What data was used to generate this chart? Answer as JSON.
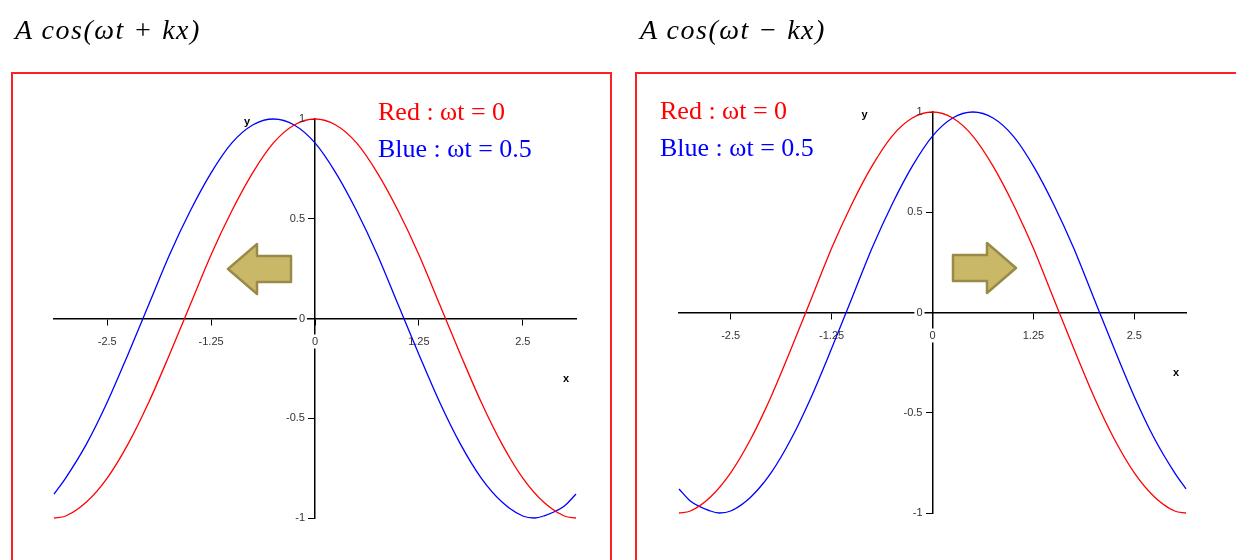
{
  "chart_data": [
    {
      "type": "line",
      "title": "A cos(ωt + kx)",
      "xlabel": "x",
      "ylabel": "y",
      "legend": "top right",
      "x": [
        -3.14,
        -3,
        -2.75,
        -2.5,
        -2.25,
        -2,
        -1.75,
        -1.5,
        -1.25,
        -1,
        -0.75,
        -0.5,
        -0.25,
        0,
        0.25,
        0.5,
        0.75,
        1,
        1.25,
        1.5,
        1.75,
        2,
        2.25,
        2.5,
        2.75,
        3,
        3.14
      ],
      "series": [
        {
          "name": "Red : ωt = 0",
          "color": "#ff0000",
          "values": [
            -1,
            -0.99,
            -0.92,
            -0.8,
            -0.63,
            -0.42,
            -0.18,
            0.07,
            0.32,
            0.54,
            0.73,
            0.88,
            0.97,
            1,
            0.97,
            0.88,
            0.73,
            0.54,
            0.32,
            0.07,
            -0.18,
            -0.42,
            -0.63,
            -0.8,
            -0.92,
            -0.99,
            -1
          ]
        },
        {
          "name": "Blue : ωt = 0.5",
          "color": "#0000ff",
          "x": [
            -3.14,
            -3,
            -2.75,
            -2.5,
            -2.25,
            -2,
            -1.75,
            -1.5,
            -1.25,
            -1,
            -0.75,
            -0.5,
            -0.25,
            0,
            0.25,
            0.5,
            0.75,
            1,
            1.25,
            1.5,
            1.75,
            2,
            2.25,
            2.5,
            2.64,
            2.75,
            3,
            3.14
          ],
          "values": [
            -0.88,
            -0.8,
            -0.63,
            -0.42,
            -0.18,
            0.07,
            0.32,
            0.54,
            0.73,
            0.88,
            0.97,
            1,
            0.97,
            0.88,
            0.73,
            0.54,
            0.32,
            0.07,
            -0.18,
            -0.42,
            -0.63,
            -0.8,
            -0.92,
            -0.99,
            -1,
            -0.99,
            -0.94,
            -0.88
          ]
        }
      ],
      "xlim": [
        -3.14,
        3.14
      ],
      "ylim": [
        -1,
        1
      ],
      "xticks": [
        -2.5,
        -1.25,
        0,
        1.25,
        2.5
      ],
      "yticks": [
        -1,
        -0.5,
        0,
        0.5,
        1
      ]
    },
    {
      "type": "line",
      "title": "A cos(ωt − kx)",
      "xlabel": "x",
      "ylabel": "y",
      "legend": "top left",
      "x": [
        -3.14,
        -3,
        -2.75,
        -2.5,
        -2.25,
        -2,
        -1.75,
        -1.5,
        -1.25,
        -1,
        -0.75,
        -0.5,
        -0.25,
        0,
        0.25,
        0.5,
        0.75,
        1,
        1.25,
        1.5,
        1.75,
        2,
        2.25,
        2.5,
        2.75,
        3,
        3.14
      ],
      "series": [
        {
          "name": "Red : ωt = 0",
          "color": "#ff0000",
          "values": [
            -1,
            -0.99,
            -0.92,
            -0.8,
            -0.63,
            -0.42,
            -0.18,
            0.07,
            0.32,
            0.54,
            0.73,
            0.88,
            0.97,
            1,
            0.97,
            0.88,
            0.73,
            0.54,
            0.32,
            0.07,
            -0.18,
            -0.42,
            -0.63,
            -0.8,
            -0.92,
            -0.99,
            -1
          ]
        },
        {
          "name": "Blue : ωt = 0.5",
          "color": "#0000ff",
          "x": [
            -3.14,
            -3,
            -2.75,
            -2.64,
            -2.5,
            -2.25,
            -2,
            -1.75,
            -1.5,
            -1.25,
            -1,
            -0.75,
            -0.5,
            -0.25,
            0,
            0.25,
            0.5,
            0.75,
            1,
            1.25,
            1.5,
            1.75,
            2,
            2.25,
            2.5,
            2.75,
            3,
            3.14
          ],
          "values": [
            -0.88,
            -0.94,
            -0.99,
            -1,
            -0.99,
            -0.92,
            -0.8,
            -0.63,
            -0.42,
            -0.18,
            0.07,
            0.32,
            0.54,
            0.73,
            0.88,
            0.97,
            1,
            0.97,
            0.88,
            0.73,
            0.54,
            0.32,
            0.07,
            -0.18,
            -0.42,
            -0.63,
            -0.8,
            -0.88
          ]
        }
      ],
      "xlim": [
        -3.14,
        3.14
      ],
      "ylim": [
        -1,
        1
      ],
      "xticks": [
        -2.5,
        -1.25,
        0,
        1.25,
        2.5
      ],
      "yticks": [
        -1,
        -0.5,
        0,
        0.5,
        1
      ]
    }
  ]
}
